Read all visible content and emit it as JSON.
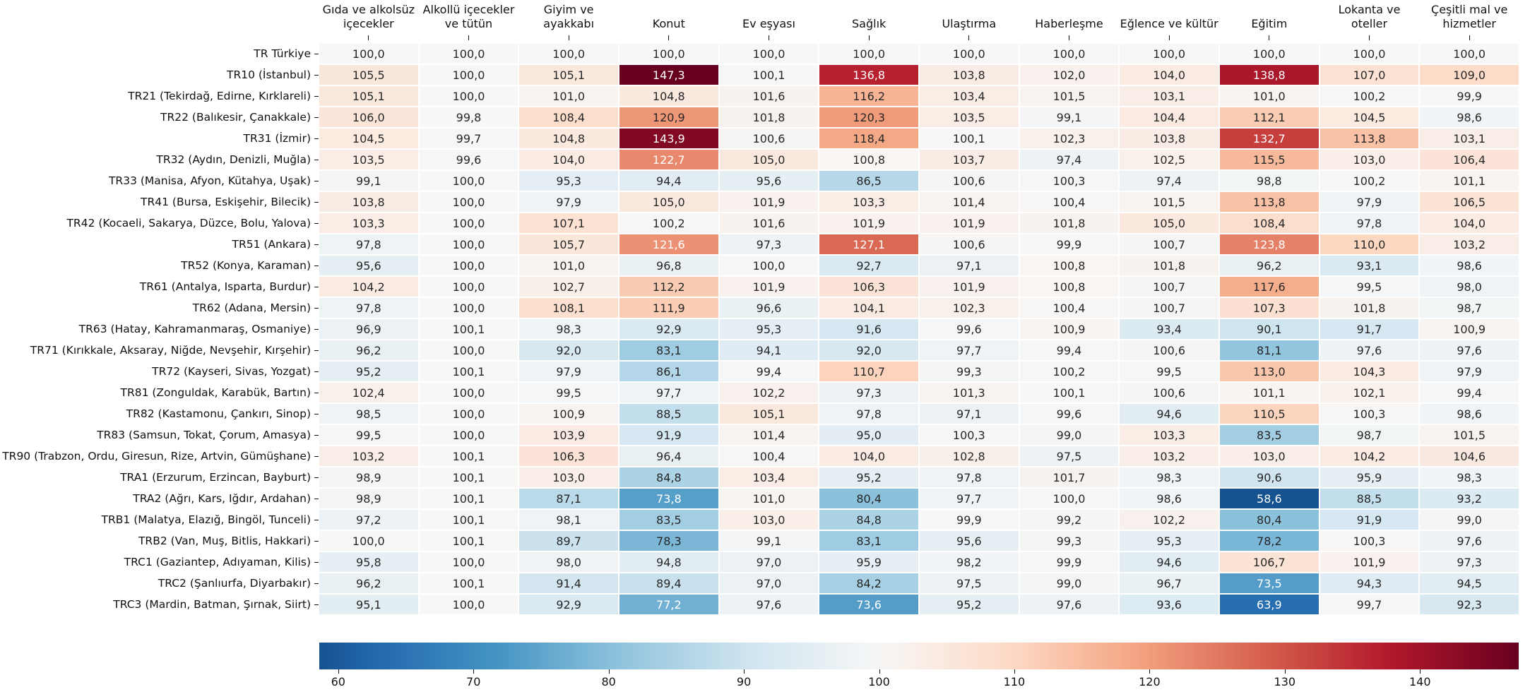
{
  "chart_data": {
    "type": "heatmap",
    "title": "",
    "x_categories": [
      "Gıda ve alkolsüz içecekler",
      "Alkollü içecekler ve tütün",
      "Giyim ve ayakkabı",
      "Konut",
      "Ev eşyası",
      "Sağlık",
      "Ulaştırma",
      "Haberleşme",
      "Eğlence ve kültür",
      "Eğitim",
      "Lokanta ve oteller",
      "Çeşitli mal ve hizmetler"
    ],
    "y_categories": [
      "TR Türkiye",
      "TR10 (İstanbul)",
      "TR21 (Tekirdağ, Edirne, Kırklareli)",
      "TR22 (Balıkesir, Çanakkale)",
      "TR31 (İzmir)",
      "TR32 (Aydın, Denizli, Muğla)",
      "TR33 (Manisa, Afyon, Kütahya, Uşak)",
      "TR41 (Bursa, Eskişehir, Bilecik)",
      "TR42 (Kocaeli, Sakarya, Düzce, Bolu, Yalova)",
      "TR51 (Ankara)",
      "TR52 (Konya, Karaman)",
      "TR61 (Antalya, Isparta, Burdur)",
      "TR62 (Adana, Mersin)",
      "TR63 (Hatay, Kahramanmaraş, Osmaniye)",
      "TR71 (Kırıkkale, Aksaray, Niğde, Nevşehir, Kırşehir)",
      "TR72 (Kayseri, Sivas, Yozgat)",
      "TR81 (Zonguldak, Karabük, Bartın)",
      "TR82 (Kastamonu, Çankırı, Sinop)",
      "TR83 (Samsun, Tokat, Çorum, Amasya)",
      "TR90 (Trabzon, Ordu, Giresun, Rize, Artvin, Gümüşhane)",
      "TRA1 (Erzurum, Erzincan, Bayburt)",
      "TRA2 (Ağrı, Kars, Iğdır, Ardahan)",
      "TRB1 (Malatya, Elazığ, Bingöl, Tunceli)",
      "TRB2 (Van, Muş, Bitlis, Hakkari)",
      "TRC1 (Gaziantep, Adıyaman, Kilis)",
      "TRC2 (Şanlıurfa, Diyarbakır)",
      "TRC3 (Mardin, Batman, Şırnak, Siirt)"
    ],
    "values": [
      [
        100.0,
        100.0,
        100.0,
        100.0,
        100.0,
        100.0,
        100.0,
        100.0,
        100.0,
        100.0,
        100.0,
        100.0
      ],
      [
        105.5,
        100.0,
        105.1,
        147.3,
        100.1,
        136.8,
        103.8,
        102.0,
        104.0,
        138.8,
        107.0,
        109.0
      ],
      [
        105.1,
        100.0,
        101.0,
        104.8,
        101.6,
        116.2,
        103.4,
        101.5,
        103.1,
        101.0,
        100.2,
        99.9
      ],
      [
        106.0,
        99.8,
        108.4,
        120.9,
        101.8,
        120.3,
        103.5,
        99.1,
        104.4,
        112.1,
        104.5,
        98.6
      ],
      [
        104.5,
        99.7,
        104.8,
        143.9,
        100.6,
        118.4,
        100.1,
        102.3,
        103.8,
        132.7,
        113.8,
        103.1
      ],
      [
        103.5,
        99.6,
        104.0,
        122.7,
        105.0,
        100.8,
        103.7,
        97.4,
        102.5,
        115.5,
        103.0,
        106.4
      ],
      [
        99.1,
        100.0,
        95.3,
        94.4,
        95.6,
        86.5,
        100.6,
        100.3,
        97.4,
        98.8,
        100.2,
        101.1
      ],
      [
        103.8,
        100.0,
        97.9,
        105.0,
        101.9,
        103.3,
        101.4,
        100.4,
        101.5,
        113.8,
        97.9,
        106.5
      ],
      [
        103.3,
        100.0,
        107.1,
        100.2,
        101.6,
        101.9,
        101.9,
        101.8,
        105.0,
        108.4,
        97.8,
        104.0
      ],
      [
        97.8,
        100.0,
        105.7,
        121.6,
        97.3,
        127.1,
        100.6,
        99.9,
        100.7,
        123.8,
        110.0,
        103.2
      ],
      [
        95.6,
        100.0,
        101.0,
        96.8,
        100.0,
        92.7,
        97.1,
        100.8,
        101.8,
        96.2,
        93.1,
        98.6
      ],
      [
        104.2,
        100.0,
        102.7,
        112.2,
        101.9,
        106.3,
        101.9,
        100.8,
        100.7,
        117.6,
        99.5,
        98.0
      ],
      [
        97.8,
        100.0,
        108.1,
        111.9,
        96.6,
        104.1,
        102.3,
        100.4,
        100.7,
        107.3,
        101.8,
        98.7
      ],
      [
        96.9,
        100.1,
        98.3,
        92.9,
        95.3,
        91.6,
        99.6,
        100.9,
        93.4,
        90.1,
        91.7,
        100.9
      ],
      [
        96.2,
        100.0,
        92.0,
        83.1,
        94.1,
        92.0,
        97.7,
        99.4,
        100.6,
        81.1,
        97.6,
        97.6
      ],
      [
        95.2,
        100.1,
        97.9,
        86.1,
        99.4,
        110.7,
        99.3,
        100.2,
        99.5,
        113.0,
        104.3,
        97.9
      ],
      [
        102.4,
        100.0,
        99.5,
        97.7,
        102.2,
        97.3,
        101.3,
        100.1,
        100.6,
        101.1,
        102.1,
        99.4
      ],
      [
        98.5,
        100.0,
        100.9,
        88.5,
        105.1,
        97.8,
        97.1,
        99.6,
        94.6,
        110.5,
        100.3,
        98.6
      ],
      [
        99.5,
        100.0,
        103.9,
        91.9,
        101.4,
        95.0,
        100.3,
        99.0,
        103.3,
        83.5,
        98.7,
        101.5
      ],
      [
        103.2,
        100.1,
        106.3,
        96.4,
        100.4,
        104.0,
        102.8,
        97.5,
        103.2,
        103.0,
        104.2,
        104.6
      ],
      [
        98.9,
        100.1,
        103.0,
        84.8,
        103.4,
        95.2,
        97.8,
        101.7,
        98.3,
        90.6,
        95.9,
        98.3
      ],
      [
        98.9,
        100.1,
        87.1,
        73.8,
        101.0,
        80.4,
        97.7,
        100.0,
        98.6,
        58.6,
        88.5,
        93.2
      ],
      [
        97.2,
        100.1,
        98.1,
        83.5,
        103.0,
        84.8,
        99.9,
        99.2,
        102.2,
        80.4,
        91.9,
        99.0
      ],
      [
        100.0,
        100.1,
        89.7,
        78.3,
        99.1,
        83.1,
        95.6,
        99.3,
        95.3,
        78.2,
        100.3,
        97.6
      ],
      [
        95.8,
        100.0,
        98.0,
        94.8,
        97.0,
        95.9,
        98.2,
        99.9,
        94.6,
        106.7,
        101.9,
        97.3
      ],
      [
        96.2,
        100.1,
        91.4,
        89.4,
        97.0,
        84.2,
        97.5,
        99.0,
        96.7,
        73.5,
        94.3,
        94.5
      ],
      [
        95.1,
        100.0,
        92.9,
        77.2,
        97.6,
        73.6,
        95.2,
        97.6,
        93.6,
        63.9,
        99.7,
        92.3
      ]
    ],
    "value_decimal_separator": ",",
    "vmin": 58.6,
    "vmax": 147.3,
    "center": 100,
    "colormap": {
      "name": "RdBu_r",
      "stops": [
        "#053061",
        "#2166ac",
        "#4393c3",
        "#92c5de",
        "#d1e5f0",
        "#f7f7f7",
        "#fddbc7",
        "#f4a582",
        "#d6604d",
        "#b2182b",
        "#67001f"
      ]
    },
    "colorbar": {
      "position": "bottom",
      "ticks": [
        60,
        70,
        80,
        90,
        100,
        110,
        120,
        130,
        140
      ]
    },
    "grid": false,
    "legend_position": "none",
    "text_colors": {
      "cell_dark": "#262626",
      "cell_light": "#ffffff",
      "axis": "#111111",
      "luminance_threshold": 0.408
    }
  }
}
